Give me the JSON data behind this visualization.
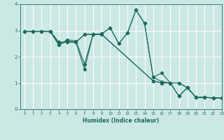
{
  "xlabel": "Humidex (Indice chaleur)",
  "xlim": [
    -0.5,
    23
  ],
  "ylim": [
    0,
    4
  ],
  "yticks": [
    0,
    1,
    2,
    3,
    4
  ],
  "xticks": [
    0,
    1,
    2,
    3,
    4,
    5,
    6,
    7,
    8,
    9,
    10,
    11,
    12,
    13,
    14,
    15,
    16,
    17,
    18,
    19,
    20,
    21,
    22,
    23
  ],
  "bg_color": "#cce8e5",
  "line_color": "#1a6b5e",
  "grid_color": "#ffffff",
  "series": [
    {
      "x": [
        0,
        1,
        2,
        3,
        4,
        5,
        6,
        7,
        8,
        9,
        10,
        11,
        12,
        13,
        14,
        15,
        16,
        17,
        18,
        19,
        20,
        21,
        22,
        23
      ],
      "y": [
        2.97,
        2.97,
        2.97,
        2.97,
        2.45,
        2.65,
        2.6,
        1.72,
        2.85,
        2.87,
        3.1,
        2.5,
        2.9,
        3.78,
        3.27,
        1.22,
        1.38,
        1.0,
        0.5,
        0.82,
        0.45,
        0.45,
        0.43,
        0.43
      ]
    },
    {
      "x": [
        0,
        1,
        2,
        3,
        4,
        5,
        6,
        7,
        8,
        9,
        10,
        11,
        12,
        13,
        14,
        15,
        16,
        17,
        18,
        19,
        20,
        21,
        22,
        23
      ],
      "y": [
        2.97,
        2.97,
        2.97,
        2.97,
        2.45,
        2.6,
        2.55,
        1.52,
        2.85,
        2.87,
        3.1,
        2.5,
        2.9,
        3.78,
        3.27,
        1.22,
        1.05,
        1.0,
        0.5,
        0.82,
        0.45,
        0.45,
        0.43,
        0.43
      ]
    },
    {
      "x": [
        0,
        1,
        2,
        3,
        4,
        5,
        6,
        7,
        8,
        9,
        15,
        16,
        17,
        18,
        19,
        20,
        21,
        22,
        23
      ],
      "y": [
        2.97,
        2.97,
        2.97,
        2.97,
        2.55,
        2.55,
        2.55,
        2.85,
        2.85,
        2.85,
        1.08,
        1.0,
        1.0,
        1.0,
        0.82,
        0.45,
        0.45,
        0.43,
        0.43
      ]
    },
    {
      "x": [
        0,
        1,
        2,
        3,
        4,
        5,
        6,
        7,
        8,
        9,
        15,
        16,
        17,
        18,
        19,
        20,
        21,
        22,
        23
      ],
      "y": [
        2.97,
        2.97,
        2.97,
        2.97,
        2.55,
        2.55,
        2.55,
        2.85,
        2.85,
        2.85,
        1.08,
        1.0,
        1.0,
        1.0,
        0.82,
        0.45,
        0.45,
        0.43,
        0.43
      ]
    }
  ]
}
